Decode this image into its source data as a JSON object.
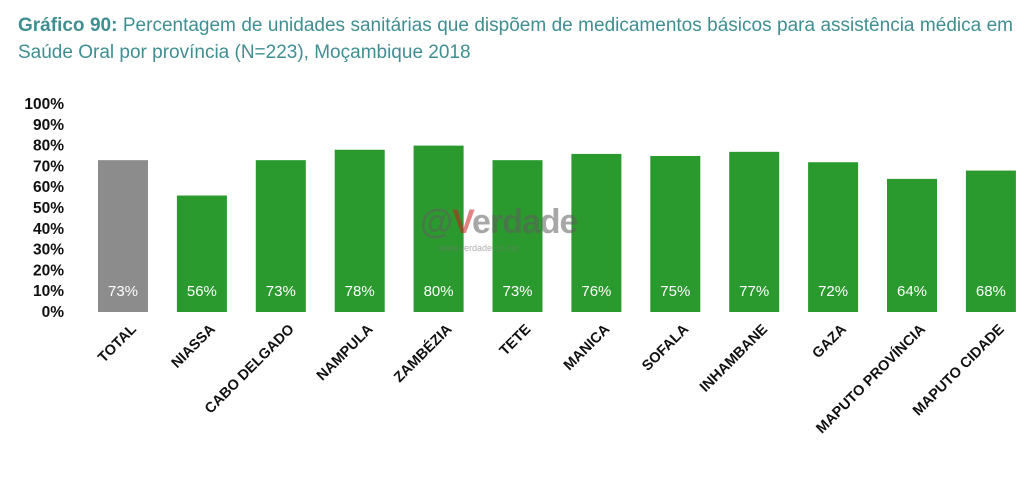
{
  "title": {
    "number": "Gráfico 90:",
    "text": "Percentagem de unidades sanitárias que dispõem de medicamentos básicos para assistência médica em Saúde Oral por província (N=223), Moçambique 2018"
  },
  "watermark": {
    "at": "@",
    "v": "V",
    "rest": "erdade",
    "url": "www.verdade.co.mz"
  },
  "colors": {
    "total": "#8c8c8c",
    "province": "#2a9a2e",
    "title": "#3f8f92"
  },
  "chart_data": {
    "type": "bar",
    "title": "Percentagem de unidades sanitárias que dispõem de medicamentos básicos para assistência médica em Saúde Oral por província (N=223), Moçambique 2018",
    "categories": [
      "TOTAL",
      "NIASSA",
      "CABO DELGADO",
      "NAMPULA",
      "ZAMBÉZIA",
      "TETE",
      "MANICA",
      "SOFALA",
      "INHAMBANE",
      "GAZA",
      "MAPUTO PROVÍNCIA",
      "MAPUTO CIDADE"
    ],
    "values": [
      73,
      56,
      73,
      78,
      80,
      73,
      76,
      75,
      77,
      72,
      64,
      68
    ],
    "data_labels": [
      "73%",
      "56%",
      "73%",
      "78%",
      "80%",
      "73%",
      "76%",
      "75%",
      "77%",
      "72%",
      "64%",
      "68%"
    ],
    "ylim": [
      0,
      100
    ],
    "yticks": [
      "0%",
      "10%",
      "20%",
      "30%",
      "40%",
      "50%",
      "60%",
      "70%",
      "80%",
      "90%",
      "100%"
    ],
    "xlabel": "",
    "ylabel": "",
    "grid": false,
    "legend": "none"
  }
}
